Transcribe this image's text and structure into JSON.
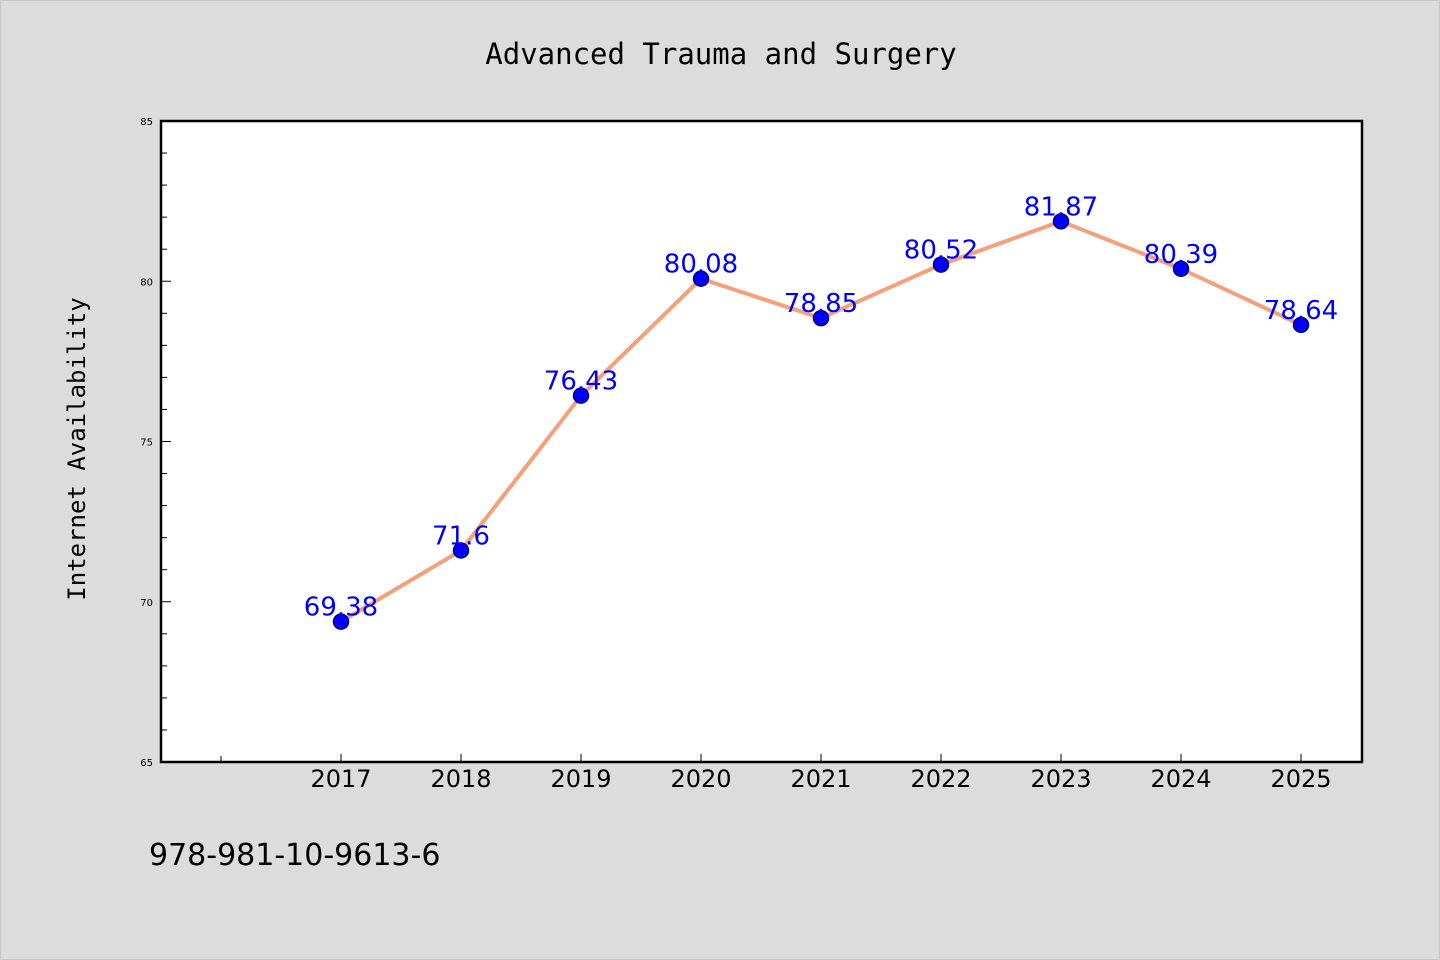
{
  "chart_data": {
    "type": "line",
    "title": "Advanced Trauma and Surgery",
    "xlabel": "",
    "ylabel": "Internet Availability",
    "categories": [
      "2017",
      "2018",
      "2019",
      "2020",
      "2021",
      "2022",
      "2023",
      "2024",
      "2025"
    ],
    "series": [
      {
        "values": [
          69.38,
          71.6,
          76.43,
          80.08,
          78.85,
          80.52,
          81.87,
          80.39,
          78.64
        ],
        "labels": [
          "69.38",
          "71.6",
          "76.43",
          "80.08",
          "78.85",
          "80.52",
          "81.87",
          "80.39",
          "78.64"
        ]
      }
    ],
    "ylim": [
      65,
      85
    ],
    "yticks": [
      "65",
      "70",
      "75",
      "80",
      "85"
    ],
    "grid": false,
    "legend": "none",
    "colors": {
      "line": "#f4a07a",
      "marker": "#0000ff",
      "marker_edge": "#000080",
      "data_label": "#0000ff",
      "background": "#dcdcdc",
      "plot_background": "#ffffff",
      "frame": "#000000"
    }
  },
  "footer": {
    "isbn": "978-981-10-9613-6"
  }
}
